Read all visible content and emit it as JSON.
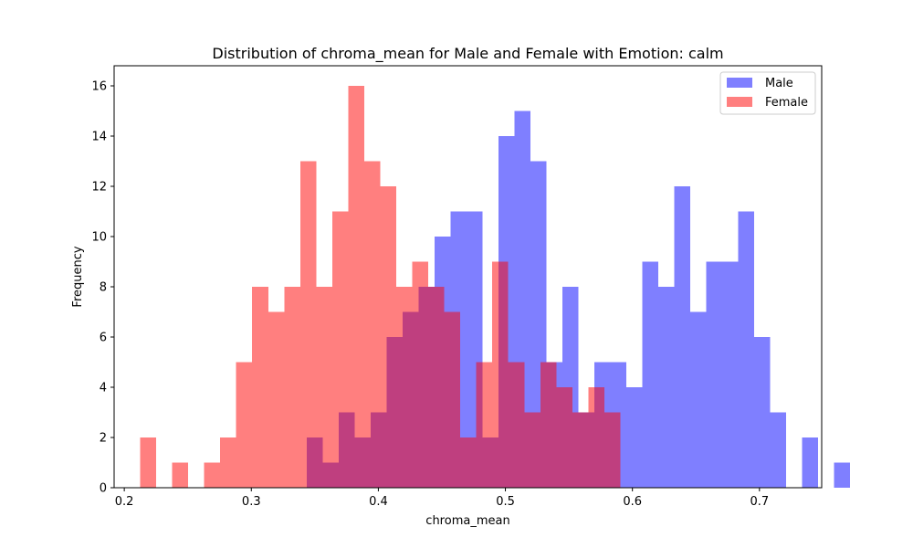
{
  "chart_data": {
    "type": "bar",
    "title": "Distribution of chroma_mean for Male and Female with Emotion: calm",
    "xlabel": "chroma_mean",
    "ylabel": "Frequency",
    "xlim": [
      0.192,
      0.749
    ],
    "ylim": [
      0,
      16.8
    ],
    "xticks": [
      0.2,
      0.3,
      0.4,
      0.5,
      0.6,
      0.7
    ],
    "yticks": [
      0,
      2,
      4,
      6,
      8,
      10,
      12,
      14,
      16
    ],
    "legend_position": "top-right",
    "series": [
      {
        "name": "Male",
        "color": "#0000ff",
        "opacity": 0.5,
        "bin_start": 0.3435,
        "bin_width": 0.012587,
        "counts": [
          2,
          1,
          3,
          2,
          3,
          6,
          7,
          8,
          10,
          11,
          11,
          2,
          14,
          15,
          13,
          5,
          8,
          3,
          5,
          5,
          4,
          9,
          8,
          12,
          7,
          9,
          9,
          11,
          6,
          3,
          0,
          2,
          0,
          1
        ]
      },
      {
        "name": "Female",
        "color": "#ff0000",
        "opacity": 0.5,
        "bin_start": 0.2125,
        "bin_width": 0.0126,
        "counts": [
          2,
          0,
          1,
          0,
          1,
          2,
          5,
          8,
          7,
          8,
          13,
          8,
          11,
          16,
          13,
          12,
          8,
          9,
          8,
          7,
          2,
          5,
          9,
          5,
          3,
          5,
          4,
          3,
          4,
          3
        ]
      }
    ]
  }
}
